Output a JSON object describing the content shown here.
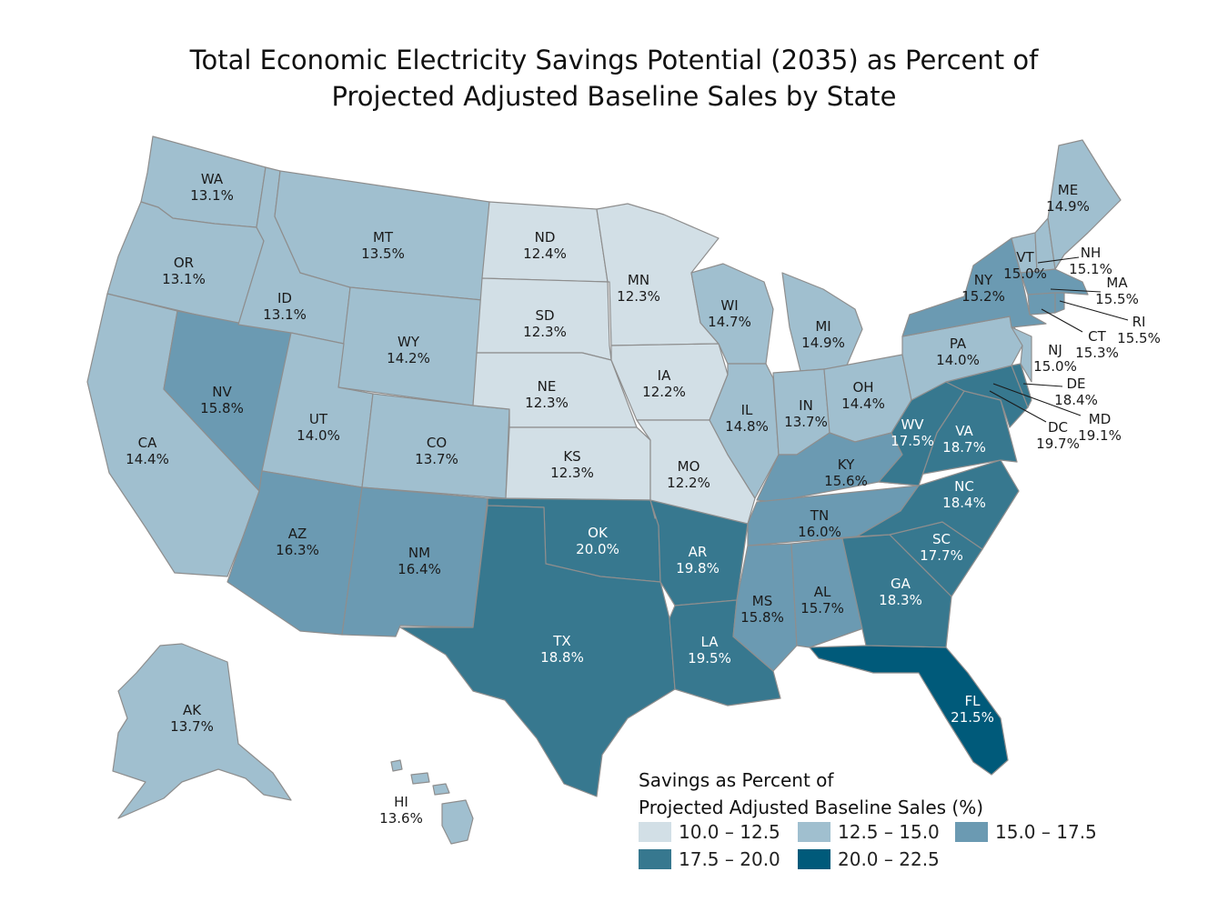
{
  "title_line1": "Total Economic Electricity Savings Potential (2035) as Percent of",
  "title_line2": "Projected Adjusted Baseline Sales by State",
  "colors": {
    "c1": "#d2dfe6",
    "c2": "#a0bfcf",
    "c3": "#6b9ab2",
    "c4": "#37788f",
    "c5": "#005a7a",
    "border": "#8e8e8e"
  },
  "states": {
    "WA": {
      "code": "WA",
      "value": "13.1%"
    },
    "OR": {
      "code": "OR",
      "value": "13.1%"
    },
    "CA": {
      "code": "CA",
      "value": "14.4%"
    },
    "NV": {
      "code": "NV",
      "value": "15.8%"
    },
    "ID": {
      "code": "ID",
      "value": "13.1%"
    },
    "MT": {
      "code": "MT",
      "value": "13.5%"
    },
    "WY": {
      "code": "WY",
      "value": "14.2%"
    },
    "UT": {
      "code": "UT",
      "value": "14.0%"
    },
    "AZ": {
      "code": "AZ",
      "value": "16.3%"
    },
    "CO": {
      "code": "CO",
      "value": "13.7%"
    },
    "NM": {
      "code": "NM",
      "value": "16.4%"
    },
    "ND": {
      "code": "ND",
      "value": "12.4%"
    },
    "SD": {
      "code": "SD",
      "value": "12.3%"
    },
    "NE": {
      "code": "NE",
      "value": "12.3%"
    },
    "KS": {
      "code": "KS",
      "value": "12.3%"
    },
    "OK": {
      "code": "OK",
      "value": "20.0%"
    },
    "TX": {
      "code": "TX",
      "value": "18.8%"
    },
    "MN": {
      "code": "MN",
      "value": "12.3%"
    },
    "IA": {
      "code": "IA",
      "value": "12.2%"
    },
    "MO": {
      "code": "MO",
      "value": "12.2%"
    },
    "AR": {
      "code": "AR",
      "value": "19.8%"
    },
    "LA": {
      "code": "LA",
      "value": "19.5%"
    },
    "WI": {
      "code": "WI",
      "value": "14.7%"
    },
    "IL": {
      "code": "IL",
      "value": "14.8%"
    },
    "MI": {
      "code": "MI",
      "value": "14.9%"
    },
    "IN": {
      "code": "IN",
      "value": "13.7%"
    },
    "OH": {
      "code": "OH",
      "value": "14.4%"
    },
    "KY": {
      "code": "KY",
      "value": "15.6%"
    },
    "TN": {
      "code": "TN",
      "value": "16.0%"
    },
    "MS": {
      "code": "MS",
      "value": "15.8%"
    },
    "AL": {
      "code": "AL",
      "value": "15.7%"
    },
    "GA": {
      "code": "GA",
      "value": "18.3%"
    },
    "FL": {
      "code": "FL",
      "value": "21.5%"
    },
    "SC": {
      "code": "SC",
      "value": "17.7%"
    },
    "NC": {
      "code": "NC",
      "value": "18.4%"
    },
    "VA": {
      "code": "VA",
      "value": "18.7%"
    },
    "WV": {
      "code": "WV",
      "value": "17.5%"
    },
    "PA": {
      "code": "PA",
      "value": "14.0%"
    },
    "NY": {
      "code": "NY",
      "value": "15.2%"
    },
    "ME": {
      "code": "ME",
      "value": "14.9%"
    },
    "VT": {
      "code": "VT",
      "value": "15.0%"
    },
    "NH": {
      "code": "NH",
      "value": "15.1%"
    },
    "MA": {
      "code": "MA",
      "value": "15.5%"
    },
    "RI": {
      "code": "RI",
      "value": "15.5%"
    },
    "CT": {
      "code": "CT",
      "value": "15.3%"
    },
    "NJ": {
      "code": "NJ",
      "value": "15.0%"
    },
    "DE": {
      "code": "DE",
      "value": "18.4%"
    },
    "MD": {
      "code": "MD",
      "value": "19.1%"
    },
    "DC": {
      "code": "DC",
      "value": "19.7%"
    },
    "AK": {
      "code": "AK",
      "value": "13.7%"
    },
    "HI": {
      "code": "HI",
      "value": "13.6%"
    }
  },
  "legend": {
    "title_line1": "Savings as Percent of",
    "title_line2": "Projected Adjusted Baseline Sales (%)",
    "items": [
      {
        "label": "10.0 – 12.5",
        "color": "#d2dfe6"
      },
      {
        "label": "12.5 – 15.0",
        "color": "#a0bfcf"
      },
      {
        "label": "15.0 – 17.5",
        "color": "#6b9ab2"
      },
      {
        "label": "17.5 – 20.0",
        "color": "#37788f"
      },
      {
        "label": "20.0 – 22.5",
        "color": "#005a7a"
      }
    ]
  }
}
